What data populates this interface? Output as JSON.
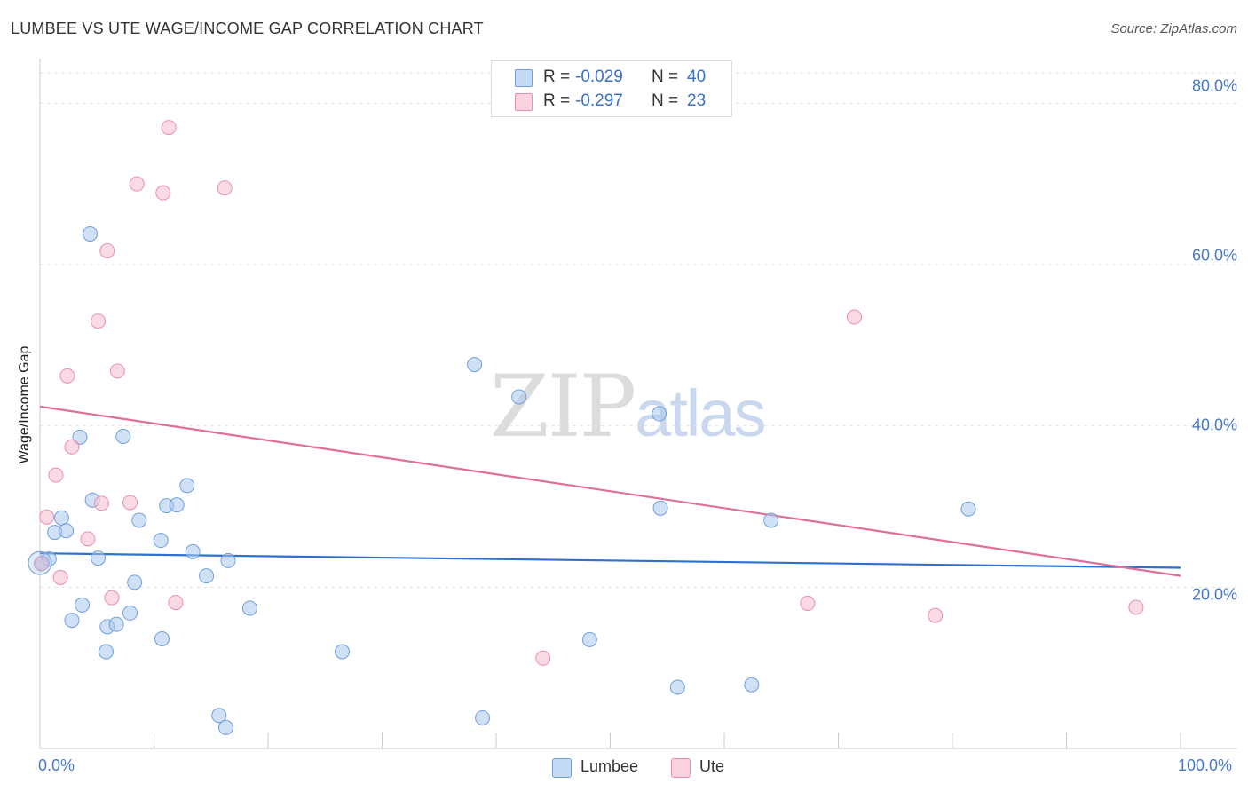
{
  "header": {
    "title": "LUMBEE VS UTE WAGE/INCOME GAP CORRELATION CHART",
    "source": "Source: ZipAtlas.com"
  },
  "watermark": {
    "zip": "ZIP",
    "atlas": "atlas"
  },
  "legend": {
    "series": [
      {
        "r_label": "R =",
        "r_value": "-0.029",
        "n_label": "N =",
        "n_value": "40",
        "color": "#aac8ef"
      },
      {
        "r_label": "R =",
        "r_value": "-0.297",
        "n_label": "N =",
        "n_value": "23",
        "color": "#f6bccd"
      }
    ]
  },
  "bottom_legend": {
    "lumbee": "Lumbee",
    "ute": "Ute"
  },
  "axes": {
    "ylabel": "Wage/Income Gap",
    "yticks": [
      "80.0%",
      "60.0%",
      "40.0%",
      "20.0%"
    ],
    "xmin_label": "0.0%",
    "xmax_label": "100.0%"
  },
  "chart_data": {
    "type": "scatter",
    "title": "LUMBEE VS UTE WAGE/INCOME GAP CORRELATION CHART",
    "xlabel": "",
    "ylabel": "Wage/Income Gap",
    "xlim": [
      0,
      100
    ],
    "ylim": [
      0,
      84
    ],
    "y_ticks": [
      20,
      40,
      60,
      80
    ],
    "grid": true,
    "legend_position": "top-center",
    "series": [
      {
        "name": "Lumbee",
        "color": "#aac8ef",
        "stroke": "#6f9fdc",
        "trend_color": "#2f6fce",
        "r": -0.029,
        "n": 40,
        "trend": [
          [
            0,
            24.2
          ],
          [
            100,
            22.4
          ]
        ],
        "points": [
          [
            0.2,
            23.0
          ],
          [
            0.8,
            23.5
          ],
          [
            1.3,
            26.8
          ],
          [
            1.9,
            28.6
          ],
          [
            2.3,
            27.0
          ],
          [
            2.8,
            15.9
          ],
          [
            3.5,
            38.6
          ],
          [
            3.7,
            17.8
          ],
          [
            4.4,
            63.8
          ],
          [
            4.6,
            30.8
          ],
          [
            5.1,
            23.6
          ],
          [
            5.8,
            12.0
          ],
          [
            5.9,
            15.1
          ],
          [
            6.7,
            15.4
          ],
          [
            7.3,
            38.7
          ],
          [
            7.9,
            16.8
          ],
          [
            8.3,
            20.6
          ],
          [
            8.7,
            28.3
          ],
          [
            10.6,
            25.8
          ],
          [
            10.7,
            13.6
          ],
          [
            11.1,
            30.1
          ],
          [
            12.0,
            30.2
          ],
          [
            12.9,
            32.6
          ],
          [
            13.4,
            24.4
          ],
          [
            14.6,
            21.4
          ],
          [
            15.7,
            4.1
          ],
          [
            16.3,
            2.6
          ],
          [
            16.5,
            23.3
          ],
          [
            18.4,
            17.4
          ],
          [
            26.5,
            12.0
          ],
          [
            38.1,
            47.6
          ],
          [
            38.8,
            3.8
          ],
          [
            42.0,
            43.6
          ],
          [
            48.2,
            13.5
          ],
          [
            54.3,
            41.5
          ],
          [
            54.4,
            29.8
          ],
          [
            55.9,
            7.6
          ],
          [
            62.4,
            7.9
          ],
          [
            64.1,
            28.3
          ],
          [
            81.4,
            29.7
          ]
        ]
      },
      {
        "name": "Ute",
        "color": "#f6bccd",
        "stroke": "#e890aa",
        "trend_color": "#e06e98",
        "r": -0.297,
        "n": 23,
        "trend": [
          [
            0,
            42.4
          ],
          [
            100,
            21.4
          ]
        ],
        "points": [
          [
            0.6,
            28.7
          ],
          [
            1.4,
            33.9
          ],
          [
            1.8,
            21.2
          ],
          [
            2.4,
            46.2
          ],
          [
            2.8,
            37.4
          ],
          [
            4.2,
            26.0
          ],
          [
            5.4,
            30.4
          ],
          [
            5.1,
            53.0
          ],
          [
            5.9,
            61.7
          ],
          [
            6.3,
            18.7
          ],
          [
            6.8,
            46.8
          ],
          [
            7.9,
            30.5
          ],
          [
            8.5,
            70.0
          ],
          [
            10.8,
            68.9
          ],
          [
            11.3,
            77.0
          ],
          [
            11.9,
            18.1
          ],
          [
            16.2,
            69.5
          ],
          [
            44.1,
            11.2
          ],
          [
            67.3,
            18.0
          ],
          [
            71.4,
            53.5
          ],
          [
            78.5,
            16.5
          ],
          [
            96.1,
            17.5
          ],
          [
            0.1,
            22.9
          ]
        ]
      }
    ]
  }
}
